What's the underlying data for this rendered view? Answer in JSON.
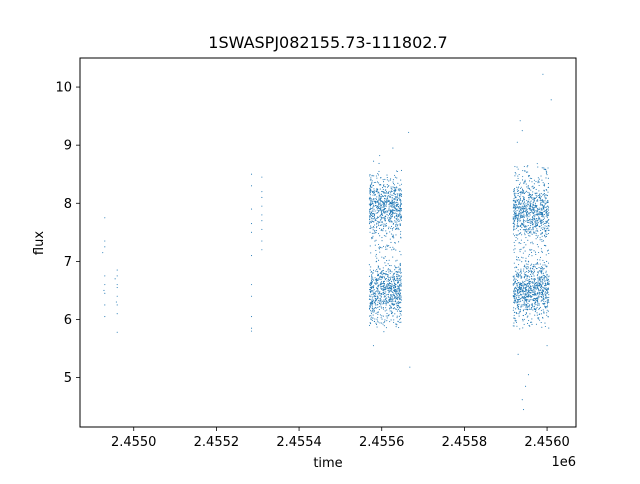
{
  "chart_data": {
    "type": "scatter",
    "title": "1SWASPJ082155.73-111802.7",
    "xlabel": "time",
    "ylabel": "flux",
    "x_offset_label": "1e6",
    "x_scale_multiplier": 1000000,
    "xlim": [
      2.45487,
      2.45607
    ],
    "ylim": [
      4.15,
      10.5
    ],
    "xticks": [
      2.455,
      2.4552,
      2.4554,
      2.4556,
      2.4558,
      2.456
    ],
    "xtick_labels": [
      "2.4550",
      "2.4552",
      "2.4554",
      "2.4556",
      "2.4558",
      "2.4560"
    ],
    "yticks": [
      5,
      6,
      7,
      8,
      9,
      10
    ],
    "ytick_labels": [
      "5",
      "6",
      "7",
      "8",
      "9",
      "10"
    ],
    "grid": false,
    "point_color": "#1f77b4",
    "series": [
      {
        "values_note": "",
        "clusters": [
          {
            "x": [
              2.454925,
              2.454932
            ],
            "points": [
              [
                2.45493,
                7.75
              ],
              [
                2.45493,
                7.35
              ],
              [
                2.45493,
                7.25
              ],
              [
                2.45493,
                6.75
              ],
              [
                2.45493,
                6.6
              ],
              [
                2.45493,
                6.45
              ],
              [
                2.45493,
                6.25
              ],
              [
                2.45493,
                6.05
              ],
              [
                2.454925,
                7.15
              ],
              [
                2.454928,
                6.5
              ]
            ]
          },
          {
            "x": [
              2.45495,
              2.454962
            ],
            "points": [
              [
                2.45496,
                6.85
              ],
              [
                2.45496,
                6.75
              ],
              [
                2.45496,
                6.6
              ],
              [
                2.45496,
                6.55
              ],
              [
                2.45496,
                6.4
              ],
              [
                2.45496,
                6.25
              ],
              [
                2.45496,
                6.1
              ],
              [
                2.45496,
                5.78
              ],
              [
                2.454955,
                6.7
              ],
              [
                2.454958,
                6.3
              ]
            ]
          },
          {
            "x": [
              2.455282,
              2.45529
            ],
            "points": [
              [
                2.455285,
                8.5
              ],
              [
                2.455285,
                8.3
              ],
              [
                2.455285,
                7.9
              ],
              [
                2.455285,
                7.65
              ],
              [
                2.455285,
                7.5
              ],
              [
                2.455285,
                7.1
              ],
              [
                2.455285,
                6.6
              ],
              [
                2.455285,
                6.4
              ],
              [
                2.455285,
                6.05
              ],
              [
                2.455285,
                5.85
              ],
              [
                2.455285,
                5.8
              ]
            ]
          },
          {
            "x": [
              2.455305,
              2.455313
            ],
            "points": [
              [
                2.45531,
                8.45
              ],
              [
                2.45531,
                8.2
              ],
              [
                2.45531,
                8.1
              ],
              [
                2.45531,
                7.95
              ],
              [
                2.45531,
                7.8
              ],
              [
                2.45531,
                7.7
              ],
              [
                2.45531,
                7.55
              ],
              [
                2.45531,
                7.35
              ],
              [
                2.45531,
                7.2
              ]
            ]
          }
        ],
        "dense_blocks": [
          {
            "x_range": [
              2.45557,
              2.455648
            ],
            "y_range": [
              5.6,
              8.75
            ],
            "y_modes": [
              6.5,
              7.95
            ],
            "count": 1500
          },
          {
            "x_range": [
              2.455918,
              2.456005
            ],
            "y_range": [
              5.6,
              8.9
            ],
            "y_modes": [
              6.5,
              7.85
            ],
            "count": 1700
          }
        ],
        "outliers": [
          [
            2.455665,
            9.22
          ],
          [
            2.455668,
            5.18
          ],
          [
            2.455595,
            8.82
          ],
          [
            2.455627,
            8.95
          ],
          [
            2.45558,
            5.55
          ],
          [
            2.455935,
            9.42
          ],
          [
            2.45594,
            9.25
          ],
          [
            2.455928,
            9.05
          ],
          [
            2.455955,
            5.05
          ],
          [
            2.45594,
            4.62
          ],
          [
            2.455943,
            4.45
          ],
          [
            2.455948,
            4.85
          ],
          [
            2.45599,
            10.22
          ],
          [
            2.45601,
            9.78
          ],
          [
            2.45593,
            5.4
          ],
          [
            2.456,
            5.55
          ]
        ]
      }
    ]
  }
}
